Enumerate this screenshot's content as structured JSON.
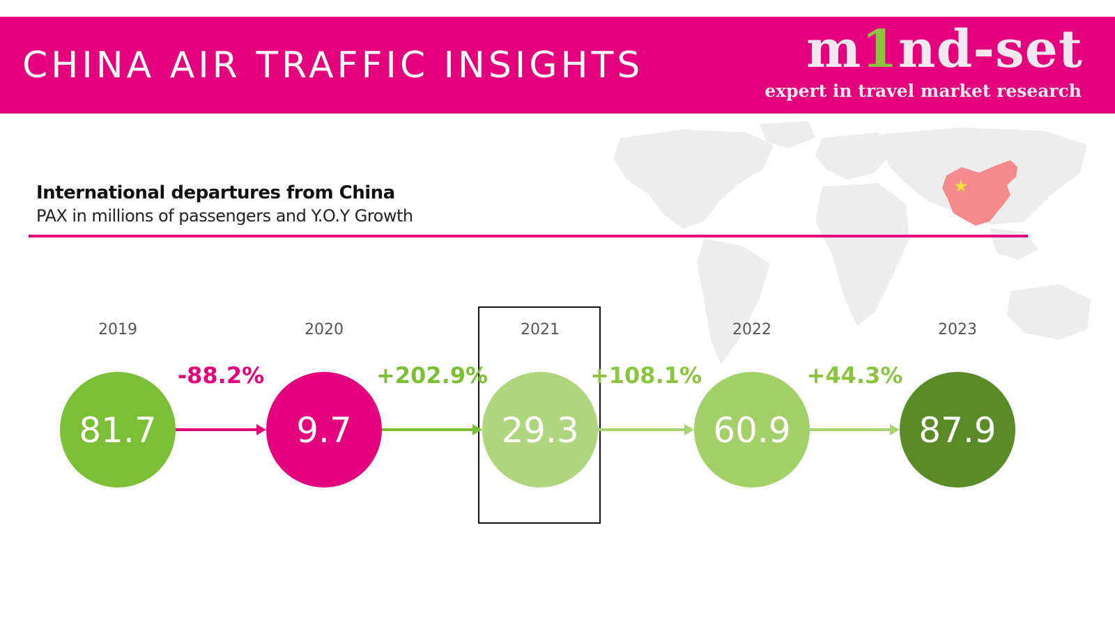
{
  "header": {
    "title": "CHINA AIR TRAFFIC INSIGHTS",
    "logo_text_a": "m",
    "logo_text_one": "1",
    "logo_text_b": "nd-set",
    "logo_tagline": "expert in travel market research",
    "background_color": "#e4007c"
  },
  "chart_data": {
    "type": "bubble-timeline",
    "title": "International departures from China",
    "subtitle": "PAX in millions of passengers and Y.O.Y Growth",
    "highlighted_year": "2021",
    "points": [
      {
        "year": "2019",
        "value": 81.7,
        "value_label": "81.7",
        "color": "#7bbf34"
      },
      {
        "year": "2020",
        "value": 9.7,
        "value_label": "9.7",
        "color": "#e4007c"
      },
      {
        "year": "2021",
        "value": 29.3,
        "value_label": "29.3",
        "color": "#afd67e"
      },
      {
        "year": "2022",
        "value": 60.9,
        "value_label": "60.9",
        "color": "#a4d06a"
      },
      {
        "year": "2023",
        "value": 87.9,
        "value_label": "87.9",
        "color": "#5a8b26"
      }
    ],
    "growth": [
      {
        "label": "-88.2%",
        "value": -88.2,
        "color": "#e4007c"
      },
      {
        "label": "+202.9%",
        "value": 202.9,
        "color": "#7bbf34"
      },
      {
        "label": "+108.1%",
        "value": 108.1,
        "color": "#8bc53f"
      },
      {
        "label": "+44.3%",
        "value": 44.3,
        "color": "#8bc53f"
      }
    ],
    "connector_colors": [
      "#e4007c",
      "#7bbf34",
      "#a8d46f",
      "#a8d46f"
    ]
  }
}
